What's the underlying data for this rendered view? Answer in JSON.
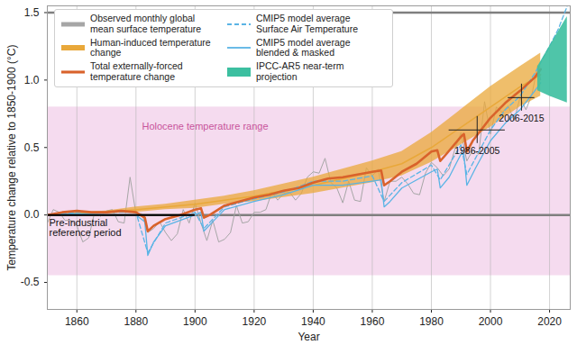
{
  "chart_data": {
    "type": "line",
    "x_label": "Year",
    "y_label": "Temperature change relative to 1850-1900 (°C)",
    "xlim": [
      1850,
      2027
    ],
    "ylim": [
      -0.7,
      1.55
    ],
    "xticks": [
      1860,
      1880,
      1900,
      1920,
      1940,
      1960,
      1980,
      2000,
      2020
    ],
    "yticks": [
      -0.5,
      {
        "value": 0,
        "label": "0.0"
      },
      0.5,
      {
        "value": 1,
        "label": "1.0"
      },
      1.5
    ],
    "grid": "x",
    "legend": "upper left",
    "series": [
      {
        "name": "Observed monthly global mean surface temperature",
        "type": "line",
        "color": "#a6a6a6",
        "line_style": "solid",
        "x": [
          1850,
          1852,
          1854,
          1856,
          1858,
          1860,
          1862,
          1864,
          1866,
          1868,
          1870,
          1872,
          1874,
          1876,
          1878,
          1880,
          1882,
          1884,
          1886,
          1888,
          1890,
          1892,
          1894,
          1896,
          1898,
          1900,
          1902,
          1904,
          1906,
          1908,
          1910,
          1912,
          1914,
          1916,
          1918,
          1920,
          1922,
          1924,
          1926,
          1928,
          1930,
          1932,
          1934,
          1936,
          1938,
          1940,
          1942,
          1944,
          1946,
          1948,
          1950,
          1952,
          1954,
          1956,
          1958,
          1960,
          1962,
          1964,
          1966,
          1968,
          1970,
          1972,
          1974,
          1976,
          1978,
          1980,
          1982,
          1984,
          1986,
          1988,
          1990,
          1992,
          1994,
          1996,
          1998,
          2000,
          2002,
          2004,
          2006,
          2008,
          2010,
          2012,
          2014,
          2016,
          2017
        ],
        "values": [
          -0.06,
          0.04,
          0.02,
          -0.04,
          -0.04,
          -0.08,
          -0.2,
          -0.17,
          0.02,
          -0.01,
          0.03,
          0.04,
          -0.05,
          -0.06,
          0.28,
          0.01,
          0.01,
          -0.13,
          -0.1,
          -0.05,
          -0.13,
          -0.19,
          -0.14,
          0.04,
          -0.06,
          0.09,
          -0.06,
          -0.19,
          -0.04,
          -0.2,
          -0.18,
          -0.13,
          0.07,
          -0.06,
          -0.05,
          0.02,
          0.02,
          0.04,
          0.17,
          0.11,
          0.16,
          0.17,
          0.11,
          0.16,
          0.28,
          0.32,
          0.31,
          0.42,
          0.24,
          0.2,
          0.09,
          0.25,
          0.11,
          0.1,
          0.35,
          0.29,
          0.34,
          0.1,
          0.25,
          0.25,
          0.28,
          0.23,
          0.16,
          0.15,
          0.31,
          0.39,
          0.35,
          0.29,
          0.34,
          0.49,
          0.61,
          0.4,
          0.48,
          0.45,
          0.84,
          0.6,
          0.8,
          0.76,
          0.81,
          0.7,
          0.87,
          0.78,
          0.89,
          1.11,
          1.0
        ]
      },
      {
        "name": "Human-induced temperature change",
        "type": "band",
        "color": "#e9a83a",
        "x": [
          1850,
          1860,
          1870,
          1880,
          1890,
          1900,
          1910,
          1920,
          1930,
          1940,
          1950,
          1960,
          1970,
          1980,
          1990,
          2000,
          2010,
          2017
        ],
        "values": [
          0.0,
          0.01,
          0.02,
          0.04,
          0.06,
          0.08,
          0.11,
          0.14,
          0.18,
          0.22,
          0.27,
          0.32,
          0.38,
          0.5,
          0.65,
          0.8,
          0.95,
          1.04
        ],
        "lower": [
          0.0,
          0.0,
          0.01,
          0.02,
          0.04,
          0.05,
          0.08,
          0.1,
          0.13,
          0.16,
          0.2,
          0.24,
          0.29,
          0.39,
          0.52,
          0.65,
          0.8,
          0.88
        ],
        "upper": [
          0.0,
          0.02,
          0.03,
          0.06,
          0.08,
          0.11,
          0.14,
          0.18,
          0.23,
          0.28,
          0.34,
          0.4,
          0.47,
          0.61,
          0.78,
          0.95,
          1.1,
          1.2
        ]
      },
      {
        "name": "Total externally-forced temperature change",
        "type": "line",
        "color": "#d9622b",
        "line_style": "solid",
        "x": [
          1850,
          1855,
          1860,
          1865,
          1870,
          1875,
          1880,
          1883,
          1884,
          1886,
          1890,
          1895,
          1900,
          1902,
          1903,
          1905,
          1910,
          1915,
          1920,
          1925,
          1930,
          1935,
          1940,
          1945,
          1950,
          1955,
          1960,
          1963,
          1964,
          1966,
          1970,
          1975,
          1980,
          1982,
          1983,
          1985,
          1990,
          1991,
          1992,
          1994,
          2000,
          2005,
          2010,
          2015,
          2017
        ],
        "values": [
          0.0,
          0.02,
          0.03,
          0.02,
          0.02,
          0.03,
          0.02,
          -0.02,
          -0.12,
          -0.08,
          -0.03,
          0.0,
          0.04,
          0.05,
          -0.02,
          0.0,
          0.07,
          0.1,
          0.13,
          0.15,
          0.18,
          0.2,
          0.24,
          0.27,
          0.28,
          0.3,
          0.32,
          0.33,
          0.22,
          0.25,
          0.32,
          0.38,
          0.47,
          0.48,
          0.4,
          0.45,
          0.58,
          0.6,
          0.47,
          0.55,
          0.72,
          0.83,
          0.92,
          1.02,
          1.08
        ]
      },
      {
        "name": "CMIP5 model average Surface Air Temperature",
        "type": "line",
        "color": "#5ab4e5",
        "line_style": "dashed",
        "x": [
          1850,
          1860,
          1880,
          1884,
          1890,
          1900,
          1903,
          1910,
          1920,
          1930,
          1940,
          1950,
          1960,
          1964,
          1970,
          1980,
          1983,
          1990,
          1992,
          2000,
          2005,
          2010,
          2015,
          2020,
          2023,
          2026
        ],
        "values": [
          0.0,
          0.02,
          0.02,
          -0.28,
          -0.06,
          0.02,
          -0.1,
          0.06,
          0.12,
          0.17,
          0.25,
          0.25,
          0.29,
          0.1,
          0.24,
          0.37,
          0.26,
          0.52,
          0.3,
          0.63,
          0.78,
          0.88,
          1.05,
          1.25,
          1.38,
          1.55
        ]
      },
      {
        "name": "CMIP5 model average blended & masked",
        "type": "line",
        "color": "#5ab4e5",
        "line_style": "solid",
        "x": [
          1850,
          1860,
          1870,
          1880,
          1883,
          1884,
          1886,
          1890,
          1900,
          1902,
          1903,
          1906,
          1910,
          1920,
          1930,
          1940,
          1950,
          1960,
          1963,
          1964,
          1966,
          1970,
          1980,
          1982,
          1983,
          1986,
          1990,
          1991,
          1992,
          1995,
          2000,
          2005,
          2010,
          2015,
          2017
        ],
        "values": [
          0.0,
          0.01,
          0.0,
          0.0,
          -0.05,
          -0.3,
          -0.2,
          -0.08,
          0.0,
          0.02,
          -0.12,
          -0.05,
          0.04,
          0.1,
          0.15,
          0.22,
          0.22,
          0.25,
          0.26,
          0.06,
          0.1,
          0.2,
          0.32,
          0.34,
          0.2,
          0.28,
          0.45,
          0.45,
          0.22,
          0.35,
          0.55,
          0.68,
          0.78,
          0.92,
          0.98
        ]
      },
      {
        "name": "IPCC-AR5 near-term projection",
        "type": "area",
        "color": "#3cbfa0",
        "x": [
          2016,
          2020,
          2026
        ],
        "lower": [
          0.92,
          0.88,
          0.83
        ],
        "upper": [
          1.1,
          1.25,
          1.47
        ]
      }
    ],
    "holocene": {
      "label": "Holocene temperature range",
      "range": [
        -0.45,
        0.8
      ],
      "color": "#e7a6d6"
    },
    "reference_lines": [
      0,
      1.5
    ],
    "reference_period": {
      "label": "Pre-industrial reference period",
      "x": [
        1850,
        1900
      ],
      "y": 0
    },
    "periods": [
      {
        "label": "1986-2005",
        "x": [
          1986,
          2005
        ],
        "y": 0.63,
        "cross_x": 1995.5,
        "cross_y": [
          0.53,
          0.73
        ]
      },
      {
        "label": "2006-2015",
        "x": [
          2006,
          2015
        ],
        "y": 0.87,
        "cross_x": 2010.5,
        "cross_y": [
          0.77,
          0.97
        ]
      }
    ]
  }
}
